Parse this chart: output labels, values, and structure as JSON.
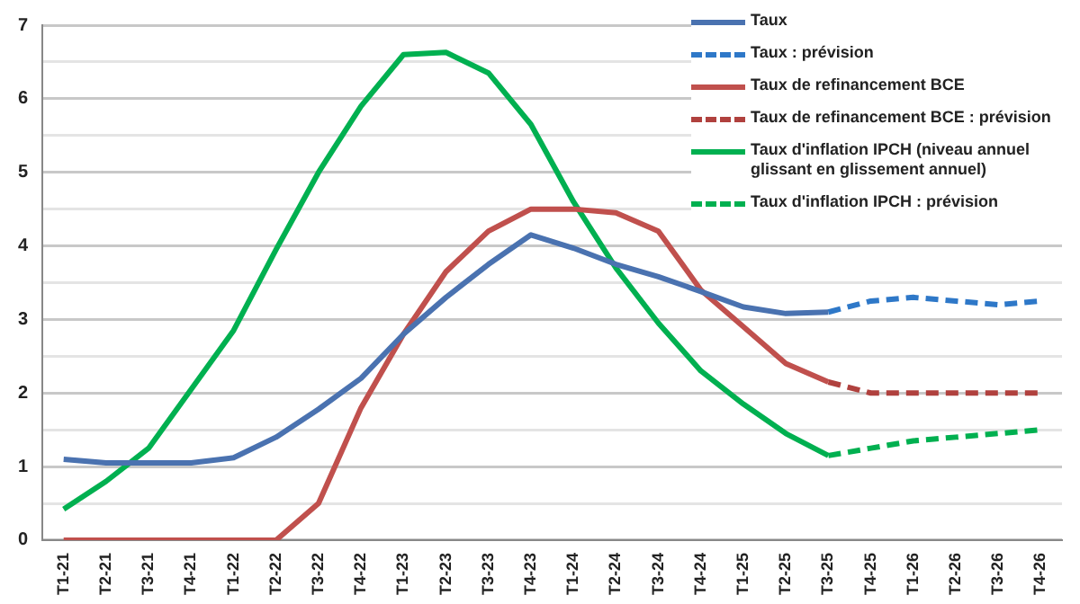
{
  "chart_data": {
    "type": "line",
    "categories": [
      "T1-21",
      "T2-21",
      "T3-21",
      "T4-21",
      "T1-22",
      "T2-22",
      "T3-22",
      "T4-22",
      "T1-23",
      "T2-23",
      "T3-23",
      "T4-23",
      "T1-24",
      "T2-24",
      "T3-24",
      "T4-24",
      "T1-25",
      "T2-25",
      "T3-25",
      "T4-25",
      "T1-26",
      "T2-26",
      "T3-26",
      "T4-26"
    ],
    "ylim": [
      0,
      7
    ],
    "yticks": [
      0,
      {
        "value": 0.5,
        "label": null
      },
      1,
      {
        "value": 1.5,
        "label": null
      },
      2,
      {
        "value": 2.5,
        "label": null
      },
      3,
      {
        "value": 3.5,
        "label": null
      },
      4,
      {
        "value": 4.5,
        "label": null
      },
      5,
      {
        "value": 5.5,
        "label": null
      },
      6,
      {
        "value": 6.5,
        "label": null
      },
      7
    ],
    "grid": "y",
    "legend": "top right",
    "marker": "none",
    "series": [
      {
        "name": "Taux",
        "color": "#4a72b0",
        "line_style": "solid",
        "values": [
          1.1,
          1.05,
          1.05,
          1.05,
          1.12,
          1.4,
          1.78,
          2.2,
          2.8,
          3.3,
          3.75,
          4.15,
          3.97,
          3.75,
          3.58,
          3.38,
          3.17,
          3.08,
          3.1,
          null,
          null,
          null,
          null,
          null
        ]
      },
      {
        "name": "Taux : prévision",
        "color": "#2e78c8",
        "line_style": "dashed",
        "values": [
          null,
          null,
          null,
          null,
          null,
          null,
          null,
          null,
          null,
          null,
          null,
          null,
          null,
          null,
          null,
          null,
          null,
          null,
          3.1,
          3.25,
          3.3,
          3.25,
          3.2,
          3.25
        ]
      },
      {
        "name": "Taux de refinancement BCE",
        "color": "#c0504d",
        "line_style": "solid",
        "values": [
          0,
          0,
          0,
          0,
          0,
          0,
          0.5,
          1.8,
          2.8,
          3.65,
          4.2,
          4.5,
          4.5,
          4.45,
          4.2,
          3.4,
          2.9,
          2.4,
          2.15,
          null,
          null,
          null,
          null,
          null
        ]
      },
      {
        "name": "Taux de refinancement BCE : prévision",
        "color": "#b0413e",
        "line_style": "dashed",
        "values": [
          null,
          null,
          null,
          null,
          null,
          null,
          null,
          null,
          null,
          null,
          null,
          null,
          null,
          null,
          null,
          null,
          null,
          null,
          2.15,
          2.0,
          2.0,
          2.0,
          2.0,
          2.0
        ]
      },
      {
        "name": "Taux d'inflation IPCH (niveau annuel glissant en glissement annuel)",
        "color": "#00b050",
        "line_style": "solid",
        "values": [
          0.42,
          0.8,
          1.25,
          2.05,
          2.85,
          3.95,
          5.0,
          5.9,
          6.6,
          6.63,
          6.35,
          5.65,
          4.6,
          3.7,
          2.95,
          2.3,
          1.85,
          1.45,
          1.15,
          null,
          null,
          null,
          null,
          null
        ]
      },
      {
        "name": "Taux d'inflation IPCH : prévision",
        "color": "#00b050",
        "line_style": "dashed",
        "values": [
          null,
          null,
          null,
          null,
          null,
          null,
          null,
          null,
          null,
          null,
          null,
          null,
          null,
          null,
          null,
          null,
          null,
          null,
          1.15,
          1.25,
          1.35,
          1.4,
          1.45,
          1.5
        ]
      }
    ]
  }
}
